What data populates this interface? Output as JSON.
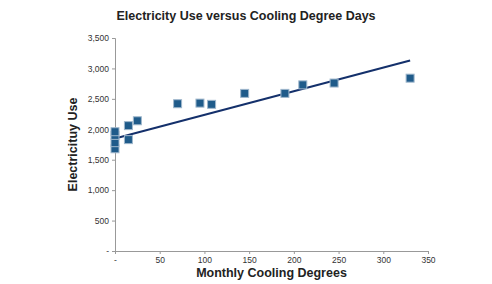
{
  "chart_data": {
    "type": "scatter",
    "title": "Electricity Use versus Cooling Degree Days",
    "x_label": "Monthly Cooling Degrees",
    "y_label": "Electricituy Use",
    "xlim": [
      0,
      350
    ],
    "xticks": [
      {
        "value": 0,
        "label": "-"
      },
      50,
      100,
      150,
      200,
      250,
      300,
      350
    ],
    "ylim": [
      0,
      3500
    ],
    "yticks": [
      {
        "value": 0,
        "label": "-"
      },
      500,
      {
        "value": 1000,
        "label": "1,000"
      },
      {
        "value": 1500,
        "label": "1,500"
      },
      {
        "value": 2000,
        "label": "2,000"
      },
      {
        "value": 2500,
        "label": "2,500"
      },
      {
        "value": 3000,
        "label": "3,000"
      },
      {
        "value": 3500,
        "label": "3,500"
      }
    ],
    "grid": false,
    "series": [
      {
        "type": "scatter",
        "color": "#1f5b8a",
        "marker": "square",
        "x": [
          0,
          0,
          0,
          0,
          15,
          15,
          25,
          70,
          95,
          108,
          145,
          190,
          210,
          245,
          330
        ],
        "values": [
          1680,
          1780,
          1900,
          1960,
          1830,
          2060,
          2140,
          2420,
          2430,
          2410,
          2590,
          2590,
          2730,
          2760,
          2840
        ]
      },
      {
        "type": "line",
        "color": "#14306b",
        "line_style": "solid",
        "x": [
          0,
          330
        ],
        "values": [
          1850,
          3130
        ]
      }
    ]
  }
}
